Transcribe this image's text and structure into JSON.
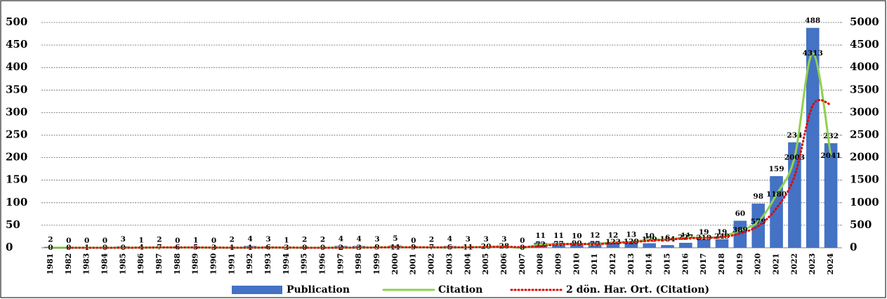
{
  "chart_data": {
    "type": "bar_line",
    "categories": [
      "1981",
      "1982",
      "1983",
      "1984",
      "1985",
      "1986",
      "1987",
      "1988",
      "1989",
      "1990",
      "1991",
      "1992",
      "1993",
      "1994",
      "1995",
      "1996",
      "1997",
      "1998",
      "1999",
      "2000",
      "2001",
      "2002",
      "2003",
      "2004",
      "2005",
      "2006",
      "2007",
      "2008",
      "2009",
      "2010",
      "2011",
      "2012",
      "2013",
      "2014",
      "2015",
      "2016",
      "2017",
      "2018",
      "2019",
      "2020",
      "2021",
      "2022",
      "2023",
      "2024"
    ],
    "series": [
      {
        "name": "Publication",
        "type": "bar",
        "color": "#4472c4",
        "values": [
          2,
          0,
          0,
          0,
          3,
          1,
          2,
          0,
          1,
          0,
          2,
          4,
          3,
          1,
          2,
          2,
          4,
          4,
          3,
          5,
          0,
          2,
          4,
          3,
          3,
          3,
          0,
          11,
          11,
          10,
          12,
          12,
          13,
          10,
          6,
          11,
          19,
          19,
          60,
          98,
          159,
          234,
          488,
          232
        ]
      },
      {
        "name": "Citation",
        "type": "line",
        "axis": "y2",
        "color": "#92d050",
        "values": [
          0,
          0,
          1,
          0,
          0,
          4,
          7,
          6,
          5,
          3,
          1,
          1,
          6,
          3,
          0,
          0,
          2,
          3,
          9,
          11,
          9,
          7,
          6,
          11,
          20,
          28,
          0,
          72,
          77,
          90,
          77,
          123,
          129,
          179,
          184,
          227,
          219,
          249,
          389,
          579,
          1180,
          2003,
          4313,
          2041
        ]
      },
      {
        "name": "2 dön. Har. Ort. (Citation)",
        "type": "dotted",
        "axis": "y2",
        "color": "#e00000",
        "values": [
          null,
          0,
          0.5,
          0.5,
          0,
          2,
          5.5,
          6.5,
          5.5,
          4,
          2,
          1,
          3.5,
          4.5,
          1.5,
          0,
          1,
          2.5,
          6,
          10,
          10,
          8,
          6.5,
          8.5,
          15.5,
          24,
          14,
          36,
          74.5,
          83.5,
          83.5,
          100,
          126,
          154,
          181.5,
          205.5,
          223,
          234,
          319,
          484,
          879.5,
          1591.5,
          3158,
          3177
        ]
      }
    ],
    "ylim": [
      0,
      500
    ],
    "yticks": [
      0,
      50,
      100,
      150,
      200,
      250,
      300,
      350,
      400,
      450,
      500
    ],
    "y2lim": [
      0,
      5000
    ],
    "y2ticks": [
      0,
      500,
      1000,
      1500,
      2000,
      2500,
      3000,
      3500,
      4000,
      4500,
      5000
    ],
    "grid": true,
    "legend": "bottom"
  }
}
